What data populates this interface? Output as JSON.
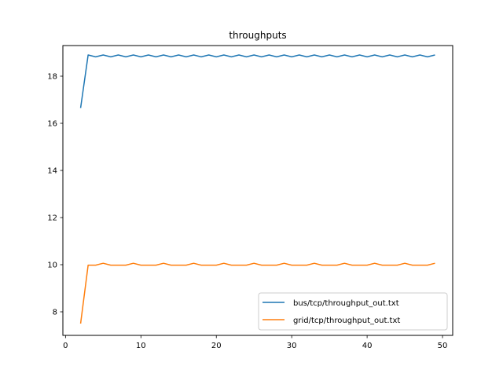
{
  "chart_data": {
    "type": "line",
    "title": "throughputs",
    "xlabel": "",
    "ylabel": "",
    "xlim": [
      -0.35,
      51.35
    ],
    "ylim": [
      7.0,
      19.3
    ],
    "xticks": [
      0,
      10,
      20,
      30,
      40,
      50
    ],
    "yticks": [
      8,
      10,
      12,
      14,
      16,
      18
    ],
    "grid": false,
    "legend_position": "lower-right",
    "series": [
      {
        "name": "bus/tcp/throughput_out.txt",
        "color": "#1f77b4",
        "x": [
          2,
          3,
          4,
          5,
          6,
          7,
          8,
          9,
          10,
          11,
          12,
          13,
          14,
          15,
          16,
          17,
          18,
          19,
          20,
          21,
          22,
          23,
          24,
          25,
          26,
          27,
          28,
          29,
          30,
          31,
          32,
          33,
          34,
          35,
          36,
          37,
          38,
          39,
          40,
          41,
          42,
          43,
          44,
          45,
          46,
          47,
          48,
          49
        ],
        "values": [
          16.65,
          18.9,
          18.82,
          18.9,
          18.82,
          18.9,
          18.82,
          18.9,
          18.82,
          18.9,
          18.82,
          18.9,
          18.82,
          18.9,
          18.82,
          18.9,
          18.82,
          18.9,
          18.82,
          18.9,
          18.82,
          18.9,
          18.82,
          18.9,
          18.82,
          18.9,
          18.82,
          18.9,
          18.82,
          18.9,
          18.82,
          18.9,
          18.82,
          18.9,
          18.82,
          18.9,
          18.82,
          18.9,
          18.82,
          18.9,
          18.82,
          18.9,
          18.82,
          18.9,
          18.82,
          18.9,
          18.82,
          18.9
        ]
      },
      {
        "name": "grid/tcp/throughput_out.txt",
        "color": "#ff7f0e",
        "x": [
          2,
          3,
          4,
          5,
          6,
          7,
          8,
          9,
          10,
          11,
          12,
          13,
          14,
          15,
          16,
          17,
          18,
          19,
          20,
          21,
          22,
          23,
          24,
          25,
          26,
          27,
          28,
          29,
          30,
          31,
          32,
          33,
          34,
          35,
          36,
          37,
          38,
          39,
          40,
          41,
          42,
          43,
          44,
          45,
          46,
          47,
          48,
          49
        ],
        "values": [
          7.5,
          9.98,
          9.98,
          10.06,
          9.98,
          9.98,
          9.98,
          10.06,
          9.98,
          9.98,
          9.98,
          10.06,
          9.98,
          9.98,
          9.98,
          10.06,
          9.98,
          9.98,
          9.98,
          10.06,
          9.98,
          9.98,
          9.98,
          10.06,
          9.98,
          9.98,
          9.98,
          10.06,
          9.98,
          9.98,
          9.98,
          10.06,
          9.98,
          9.98,
          9.98,
          10.06,
          9.98,
          9.98,
          9.98,
          10.06,
          9.98,
          9.98,
          9.98,
          10.06,
          9.98,
          9.98,
          9.98,
          10.06
        ]
      }
    ]
  }
}
